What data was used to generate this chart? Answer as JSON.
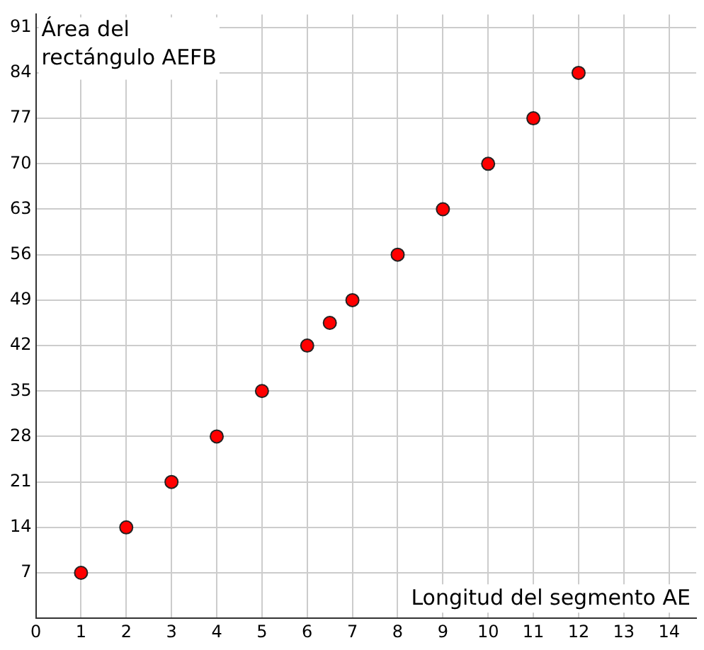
{
  "chart_data": {
    "type": "scatter",
    "xlabel": "Longitud del segmento AE",
    "ylabel": "Área del rectángulo AEFB",
    "x": [
      1,
      2,
      3,
      4,
      5,
      6,
      6.5,
      7,
      8,
      9,
      10,
      11,
      12
    ],
    "series": [
      {
        "color": "#ff0000",
        "values": [
          7,
          14,
          21,
          28,
          35,
          42,
          45.5,
          49,
          56,
          63,
          70,
          77,
          84
        ]
      }
    ],
    "xlim": [
      0,
      14.6
    ],
    "ylim": [
      0,
      93
    ],
    "xticks": [
      0,
      1,
      2,
      3,
      4,
      5,
      6,
      7,
      8,
      9,
      10,
      11,
      12,
      13,
      14
    ],
    "yticks": [
      7,
      14,
      21,
      28,
      35,
      42,
      49,
      56,
      63,
      70,
      77,
      84,
      91
    ],
    "grid": true,
    "legend": false,
    "marker": "circle"
  }
}
